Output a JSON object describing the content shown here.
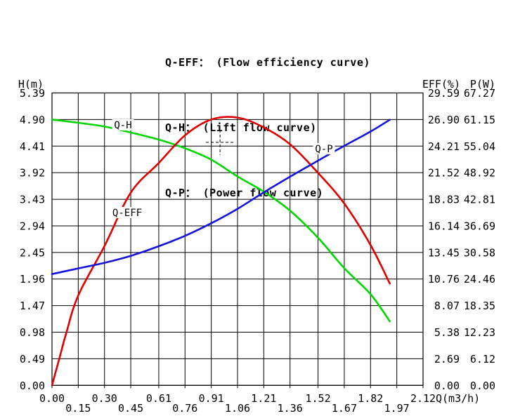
{
  "header": {
    "legend_lines": [
      "Q-EFF： (Flow efficiency curve)",
      "Q-H： (Lift flow curve)",
      "Q-P： (Power flow curve)"
    ]
  },
  "chart_data": {
    "type": "line",
    "grid": true,
    "x_axis": {
      "unit_label": "Q(m3/h)",
      "min": 0,
      "max": 2.12,
      "ticks": [
        {
          "q": 0.0,
          "label": "0.00",
          "row": 1
        },
        {
          "q": 0.15,
          "label": "0.15",
          "row": 2
        },
        {
          "q": 0.3,
          "label": "0.30",
          "row": 1
        },
        {
          "q": 0.45,
          "label": "0.45",
          "row": 2
        },
        {
          "q": 0.61,
          "label": "0.61",
          "row": 1
        },
        {
          "q": 0.76,
          "label": "0.76",
          "row": 2
        },
        {
          "q": 0.91,
          "label": "0.91",
          "row": 1
        },
        {
          "q": 1.06,
          "label": "1.06",
          "row": 2
        },
        {
          "q": 1.21,
          "label": "1.21",
          "row": 1
        },
        {
          "q": 1.36,
          "label": "1.36",
          "row": 2
        },
        {
          "q": 1.52,
          "label": "1.52",
          "row": 1
        },
        {
          "q": 1.67,
          "label": "1.67",
          "row": 2
        },
        {
          "q": 1.82,
          "label": "1.82",
          "row": 1
        },
        {
          "q": 1.97,
          "label": "1.97",
          "row": 2
        },
        {
          "q": 2.12,
          "label": "2.12",
          "row": 1
        }
      ]
    },
    "y_axes": {
      "left": {
        "header": "H(m)",
        "max": 5.39,
        "labels": [
          "5.39",
          "4.90",
          "4.41",
          "3.92",
          "3.43",
          "2.94",
          "2.45",
          "1.96",
          "1.47",
          "0.98",
          "0.49",
          "0.00"
        ]
      },
      "right_eff": {
        "header": "EFF(%)",
        "max": 29.59,
        "labels": [
          "29.59",
          "26.90",
          "24.21",
          "21.52",
          "18.83",
          "16.14",
          "13.45",
          "10.76",
          "8.07",
          "5.38",
          "2.69",
          "0.00"
        ]
      },
      "right_p": {
        "header": "P(W)",
        "max": 67.27,
        "labels": [
          "67.27",
          "61.15",
          "55.04",
          "48.92",
          "42.81",
          "36.69",
          "30.58",
          "24.46",
          "18.35",
          "12.23",
          "6.12",
          "0.00"
        ]
      }
    },
    "series": [
      {
        "name": "Q-H",
        "description": "Lift flow curve",
        "axis": "left",
        "color": "#00d600",
        "x": [
          0,
          0.15,
          0.3,
          0.45,
          0.61,
          0.76,
          0.91,
          1.06,
          1.21,
          1.36,
          1.52,
          1.67,
          1.82,
          1.93
        ],
        "values": [
          4.9,
          4.84,
          4.77,
          4.66,
          4.53,
          4.37,
          4.16,
          3.85,
          3.57,
          3.22,
          2.72,
          2.16,
          1.68,
          1.18
        ]
      },
      {
        "name": "Q-EFF",
        "description": "Flow efficiency curve",
        "axis": "right_eff",
        "color": "#e00000",
        "x": [
          0,
          0.04,
          0.08,
          0.15,
          0.3,
          0.45,
          0.61,
          0.76,
          0.91,
          1.06,
          1.21,
          1.36,
          1.52,
          1.67,
          1.82,
          1.93
        ],
        "values": [
          0,
          2.6,
          5.2,
          9.1,
          14.1,
          19.5,
          22.5,
          25.3,
          26.9,
          27.1,
          26.1,
          24.4,
          21.5,
          18.4,
          14.2,
          10.3
        ]
      },
      {
        "name": "Q-P",
        "description": "Power flow curve",
        "axis": "right_p",
        "color": "#1414dc",
        "x": [
          0,
          0.15,
          0.3,
          0.45,
          0.61,
          0.76,
          0.91,
          1.06,
          1.21,
          1.36,
          1.52,
          1.67,
          1.82,
          1.93
        ],
        "values": [
          25.6,
          26.9,
          28.2,
          29.8,
          32.0,
          34.4,
          37.3,
          40.6,
          44.4,
          48.0,
          51.7,
          55.1,
          58.4,
          61.1
        ]
      }
    ],
    "curve_labels": [
      {
        "text": "Q-H",
        "x": 175,
        "y": 183
      },
      {
        "text": "Q-EFF",
        "x": 181,
        "y": 308
      },
      {
        "text": "Q-P",
        "x": 461,
        "y": 217
      }
    ],
    "marker": {
      "q": 0.96,
      "h": 4.48
    }
  }
}
